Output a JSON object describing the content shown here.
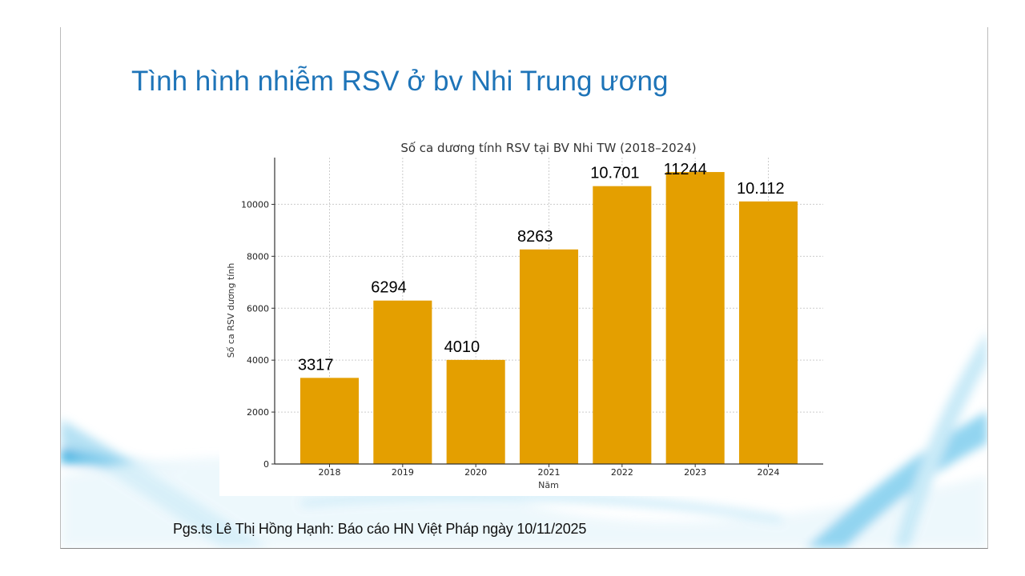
{
  "slide": {
    "title": "Tình hình nhiễm RSV ở bv Nhi Trung ương",
    "credit": "Pgs.ts Lê Thị Hồng Hạnh: Báo cáo HN Việt Pháp ngày 10/11/2025",
    "title_color": "#1e74b8"
  },
  "chart_data": {
    "type": "bar",
    "title": "Số ca dương tính RSV tại BV Nhi TW (2018–2024)",
    "xlabel": "Năm",
    "ylabel": "Số ca RSV dương tính",
    "categories": [
      "2018",
      "2019",
      "2020",
      "2021",
      "2022",
      "2023",
      "2024"
    ],
    "values": [
      3317,
      6294,
      4010,
      8263,
      10701,
      11244,
      10112
    ],
    "data_labels": [
      "3317",
      "6294",
      "4010",
      "8263",
      "10.701",
      "11244",
      "10.112"
    ],
    "yticks": [
      0,
      2000,
      4000,
      6000,
      8000,
      10000
    ],
    "ylim": [
      0,
      11800
    ],
    "grid": true,
    "bar_color": "#e49f00"
  }
}
